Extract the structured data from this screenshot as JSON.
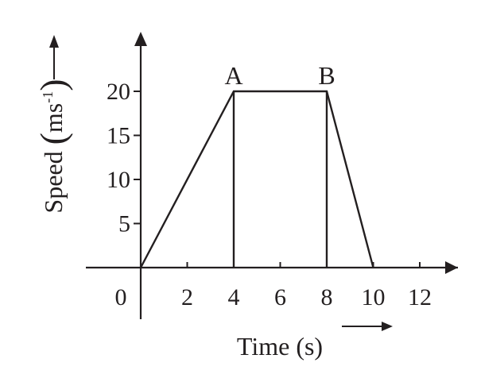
{
  "chart_data": {
    "type": "line",
    "title": "",
    "xlabel": "Time (s)",
    "ylabel_text": "Speed",
    "ylabel_unit": "ms",
    "ylabel_exponent": "-1",
    "x_ticks": [
      "2",
      "4",
      "6",
      "8",
      "10",
      "12"
    ],
    "y_ticks": [
      "5",
      "10",
      "15",
      "20"
    ],
    "origin_label": "0",
    "xlim": [
      0,
      13.5
    ],
    "ylim": [
      0,
      25
    ],
    "grid": false,
    "series": [
      {
        "x": [
          0,
          4,
          8,
          10
        ],
        "y": [
          0,
          20,
          20,
          0
        ]
      }
    ],
    "points": [
      {
        "label": "A",
        "x": 4,
        "y": 20
      },
      {
        "label": "B",
        "x": 8,
        "y": 20
      }
    ],
    "colors": {
      "ink": "#231f20"
    }
  }
}
